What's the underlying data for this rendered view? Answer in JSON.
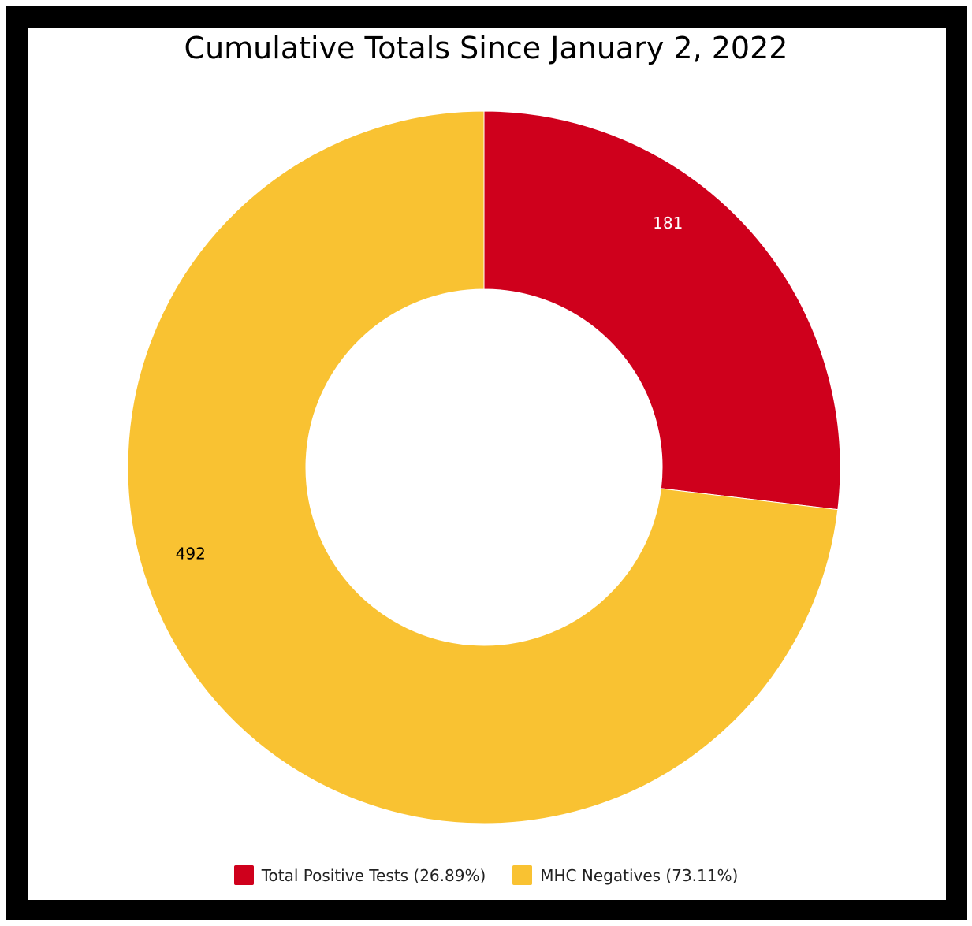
{
  "chart_data": {
    "type": "pie",
    "variant": "donut",
    "title": "Cumulative Totals Since January 2, 2022",
    "slices": [
      {
        "label": "Total Positive Tests (26.89%)",
        "value": 181,
        "value_label": "181",
        "color": "#cf001c",
        "label_color": "#ffffff"
      },
      {
        "label": "MHC Negatives (73.11%)",
        "value": 492,
        "value_label": "492",
        "color": "#f9c232",
        "label_color": "#000000"
      }
    ],
    "legend_position": "bottom"
  }
}
